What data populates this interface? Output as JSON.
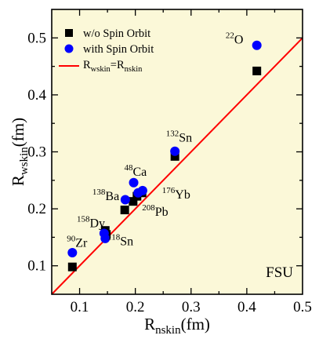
{
  "chart_data": {
    "type": "scatter",
    "xlabel": {
      "main": "R",
      "sub": "nskin",
      "unit": "(fm)"
    },
    "ylabel": {
      "main": "R",
      "sub": "wskin",
      "unit": "(fm)"
    },
    "xlim": [
      0.05,
      0.5
    ],
    "ylim": [
      0.05,
      0.55
    ],
    "xticks": [
      0.1,
      0.2,
      0.3,
      0.4,
      0.5
    ],
    "yticks": [
      0.1,
      0.2,
      0.3,
      0.4,
      0.5
    ],
    "xtick_labels": [
      "0.1",
      "0.2",
      "0.3",
      "0.4",
      "0.5"
    ],
    "ytick_labels": [
      "0.1",
      "0.2",
      "0.3",
      "0.4",
      "0.5"
    ],
    "background_color": "#fbf8d8",
    "grid": false,
    "legend_placement": "top-left",
    "legend": [
      {
        "label": "w/o Spin Orbit",
        "marker": "square",
        "color": "#000000"
      },
      {
        "label": "with Spin Orbit",
        "marker": "circle",
        "color": "#0000ff"
      },
      {
        "label_main": "R",
        "label_sub1": "wskin",
        "label_eq": "=R",
        "label_sub2": "nskin",
        "marker": "line",
        "color": "#ff0000"
      }
    ],
    "series": [
      {
        "name": "w/o Spin Orbit",
        "marker": "square",
        "color": "#000000",
        "points": [
          {
            "x": 0.087,
            "y": 0.098
          },
          {
            "x": 0.146,
            "y": 0.162
          },
          {
            "x": 0.148,
            "y": 0.155
          },
          {
            "x": 0.181,
            "y": 0.198
          },
          {
            "x": 0.196,
            "y": 0.213
          },
          {
            "x": 0.203,
            "y": 0.222
          },
          {
            "x": 0.212,
            "y": 0.228
          },
          {
            "x": 0.271,
            "y": 0.292
          },
          {
            "x": 0.418,
            "y": 0.442
          }
        ]
      },
      {
        "name": "with Spin Orbit",
        "marker": "circle",
        "color": "#0000ff",
        "points": [
          {
            "x": 0.087,
            "y": 0.123
          },
          {
            "x": 0.146,
            "y": 0.148
          },
          {
            "x": 0.144,
            "y": 0.157
          },
          {
            "x": 0.182,
            "y": 0.216
          },
          {
            "x": 0.197,
            "y": 0.246
          },
          {
            "x": 0.205,
            "y": 0.228
          },
          {
            "x": 0.213,
            "y": 0.232
          },
          {
            "x": 0.271,
            "y": 0.301
          },
          {
            "x": 0.418,
            "y": 0.487
          }
        ]
      }
    ],
    "reference_line": {
      "name": "R_wskin = R_nskin",
      "color": "#ff0000",
      "from": [
        0.05,
        0.05
      ],
      "to": [
        0.5,
        0.5
      ]
    },
    "annotations": [
      {
        "mass": "22",
        "element": "O",
        "x": 0.362,
        "y": 0.49
      },
      {
        "mass": "132",
        "element": "Sn",
        "x": 0.255,
        "y": 0.318
      },
      {
        "mass": "48",
        "element": "Ca",
        "x": 0.18,
        "y": 0.258
      },
      {
        "mass": "138",
        "element": "Ba",
        "x": 0.123,
        "y": 0.215
      },
      {
        "mass": "176",
        "element": "Yb",
        "x": 0.248,
        "y": 0.218
      },
      {
        "mass": "208",
        "element": "Pb",
        "x": 0.212,
        "y": 0.188
      },
      {
        "mass": "158",
        "element": "Dy",
        "x": 0.095,
        "y": 0.168
      },
      {
        "mass": "118",
        "element": "Sn",
        "x": 0.15,
        "y": 0.136
      },
      {
        "mass": "90",
        "element": "Zr",
        "x": 0.077,
        "y": 0.133
      }
    ],
    "panel_label": "FSU"
  }
}
